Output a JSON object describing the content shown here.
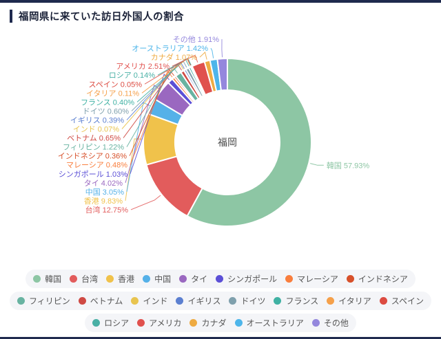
{
  "page": {
    "title": "福岡県に来ていた訪日外国人の割合",
    "accent_color": "#1f2a4e",
    "title_color": "#1a2138"
  },
  "chart_data": {
    "type": "pie",
    "subtype": "donut",
    "title": "福岡県に来ていた訪日外国人の割合",
    "center_label": "福岡",
    "unit": "%",
    "legend_position": "bottom",
    "legend_rows": [
      8,
      8,
      5
    ],
    "series": [
      {
        "name": "韓国",
        "value": 57.93,
        "color": "#8dc6a4"
      },
      {
        "name": "台湾",
        "value": 12.75,
        "color": "#e25c5c"
      },
      {
        "name": "香港",
        "value": 9.83,
        "color": "#f0c24b"
      },
      {
        "name": "中国",
        "value": 3.05,
        "color": "#55b1e8"
      },
      {
        "name": "タイ",
        "value": 4.02,
        "color": "#9a68c0"
      },
      {
        "name": "シンガポール",
        "value": 1.03,
        "color": "#5b4fd6"
      },
      {
        "name": "マレーシア",
        "value": 0.48,
        "color": "#f97e3d"
      },
      {
        "name": "インドネシア",
        "value": 0.36,
        "color": "#d7502a"
      },
      {
        "name": "フィリピン",
        "value": 1.22,
        "color": "#68b3a1"
      },
      {
        "name": "ベトナム",
        "value": 0.65,
        "color": "#cf4a44"
      },
      {
        "name": "インド",
        "value": 0.07,
        "color": "#e8c44f"
      },
      {
        "name": "イギリス",
        "value": 0.39,
        "color": "#5b7fd0"
      },
      {
        "name": "ドイツ",
        "value": 0.6,
        "color": "#7fa0ad"
      },
      {
        "name": "フランス",
        "value": 0.4,
        "color": "#3fb1a3"
      },
      {
        "name": "イタリア",
        "value": 0.11,
        "color": "#f5a04a"
      },
      {
        "name": "スペイン",
        "value": 0.05,
        "color": "#dc4b41"
      },
      {
        "name": "ロシア",
        "value": 0.14,
        "color": "#49b0a5"
      },
      {
        "name": "アメリカ",
        "value": 2.51,
        "color": "#e0514e"
      },
      {
        "name": "カナダ",
        "value": 1.07,
        "color": "#eeab43"
      },
      {
        "name": "オーストラリア",
        "value": 1.42,
        "color": "#4db5ea"
      },
      {
        "name": "その他",
        "value": 1.91,
        "color": "#9487dd"
      }
    ]
  }
}
